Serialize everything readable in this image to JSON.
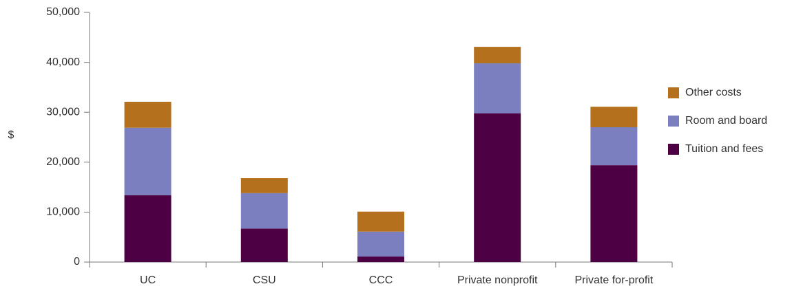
{
  "chart_data": {
    "type": "stacked-bar",
    "ylabel": "$",
    "categories": [
      "UC",
      "CSU",
      "CCC",
      "Private nonprofit",
      "Private for-profit"
    ],
    "series": [
      {
        "name": "Tuition and fees",
        "color": "#4e0045",
        "values": [
          13400,
          6700,
          1100,
          29800,
          19400
        ]
      },
      {
        "name": "Room and board",
        "color": "#7b7fbf",
        "values": [
          13500,
          7100,
          5000,
          10000,
          7600
        ]
      },
      {
        "name": "Other costs",
        "color": "#b5701d",
        "values": [
          5200,
          3000,
          4000,
          3300,
          4100
        ]
      }
    ],
    "ylim": [
      0,
      50000
    ],
    "yticks": [
      0,
      {
        "value": 10000,
        "label": "10,000"
      },
      {
        "value": 20000,
        "label": "20,000"
      },
      {
        "value": 30000,
        "label": "30,000"
      },
      {
        "value": 40000,
        "label": "40,000"
      },
      {
        "value": 50000,
        "label": "50,000"
      }
    ],
    "legend": "right"
  }
}
